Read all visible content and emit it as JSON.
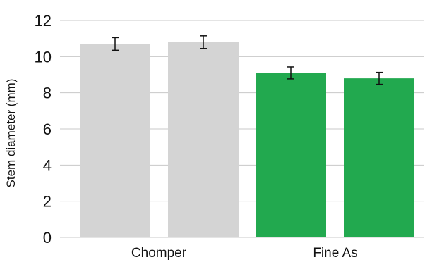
{
  "chart_data": {
    "type": "bar",
    "title": "",
    "xlabel": "",
    "ylabel": "Stem diameter (mm)",
    "ylim": [
      0,
      12
    ],
    "yticks": [
      0,
      2,
      4,
      6,
      8,
      10,
      12
    ],
    "categories": [
      "Chomper",
      "Fine As"
    ],
    "grid": true,
    "legend": "none",
    "bars": [
      {
        "category": "Chomper",
        "value": 10.7,
        "error": 0.35,
        "color": "#d4d4d4"
      },
      {
        "category": "Chomper",
        "value": 10.8,
        "error": 0.35,
        "color": "#d4d4d4"
      },
      {
        "category": "Fine As",
        "value": 9.1,
        "error": 0.33,
        "color": "#22a94f"
      },
      {
        "category": "Fine As",
        "value": 8.8,
        "error": 0.33,
        "color": "#22a94f"
      }
    ],
    "colors": {
      "grid": "#c8c8c8",
      "error_bar": "#111111",
      "axis": "#c8c8c8"
    }
  }
}
